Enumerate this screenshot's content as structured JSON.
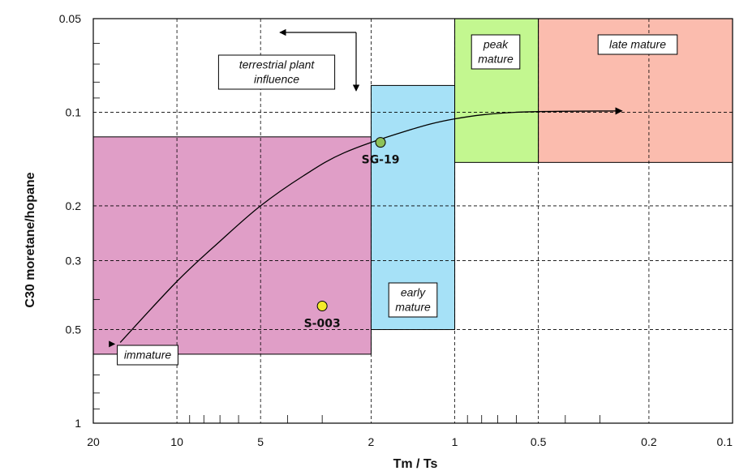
{
  "chart_data": {
    "type": "scatter",
    "xlabel": "Tm / Ts",
    "ylabel": "C30 moretane/hopane",
    "x_scale": "log",
    "x_reversed": true,
    "xlim": [
      20,
      0.1
    ],
    "x_ticks": [
      "20",
      "10",
      "5",
      "2",
      "1",
      "0.5",
      "0.2",
      "0.1"
    ],
    "y_scale": "log",
    "y_reversed": true,
    "ylim": [
      0.05,
      1
    ],
    "y_ticks": [
      "0.05",
      "0.1",
      "0.2",
      "0.3",
      "0.5",
      "1"
    ],
    "grid": true,
    "zones": [
      {
        "label": "immature",
        "x_range": [
          20,
          2
        ],
        "y_range": [
          0.12,
          0.6
        ],
        "color": "#e09ec7"
      },
      {
        "label": "early mature",
        "x_range": [
          2,
          1
        ],
        "y_range": [
          0.082,
          0.5
        ],
        "color": "#a6e1f7"
      },
      {
        "label": "peak mature",
        "x_range": [
          1,
          0.5
        ],
        "y_range": [
          0.05,
          0.145
        ],
        "color": "#c3f790"
      },
      {
        "label": "late mature",
        "x_range": [
          0.5,
          0.1
        ],
        "y_range": [
          0.05,
          0.145
        ],
        "color": "#fbbcae"
      }
    ],
    "annotations": [
      {
        "text": "terrestrial plant influence"
      }
    ],
    "trend_curve": [
      {
        "x": 16,
        "y": 0.55
      },
      {
        "x": 10,
        "y": 0.35
      },
      {
        "x": 7,
        "y": 0.26
      },
      {
        "x": 5,
        "y": 0.2
      },
      {
        "x": 3.5,
        "y": 0.16
      },
      {
        "x": 2.5,
        "y": 0.135
      },
      {
        "x": 1.5,
        "y": 0.115
      },
      {
        "x": 1,
        "y": 0.105
      },
      {
        "x": 0.6,
        "y": 0.1
      },
      {
        "x": 0.25,
        "y": 0.099
      }
    ],
    "series": [
      {
        "values": [
          {
            "label": "SG-19",
            "x": 1.85,
            "y": 0.125,
            "color": "#8dc158"
          },
          {
            "label": "S-003",
            "x": 3.0,
            "y": 0.42,
            "color": "#f4ea2a"
          }
        ]
      }
    ]
  }
}
